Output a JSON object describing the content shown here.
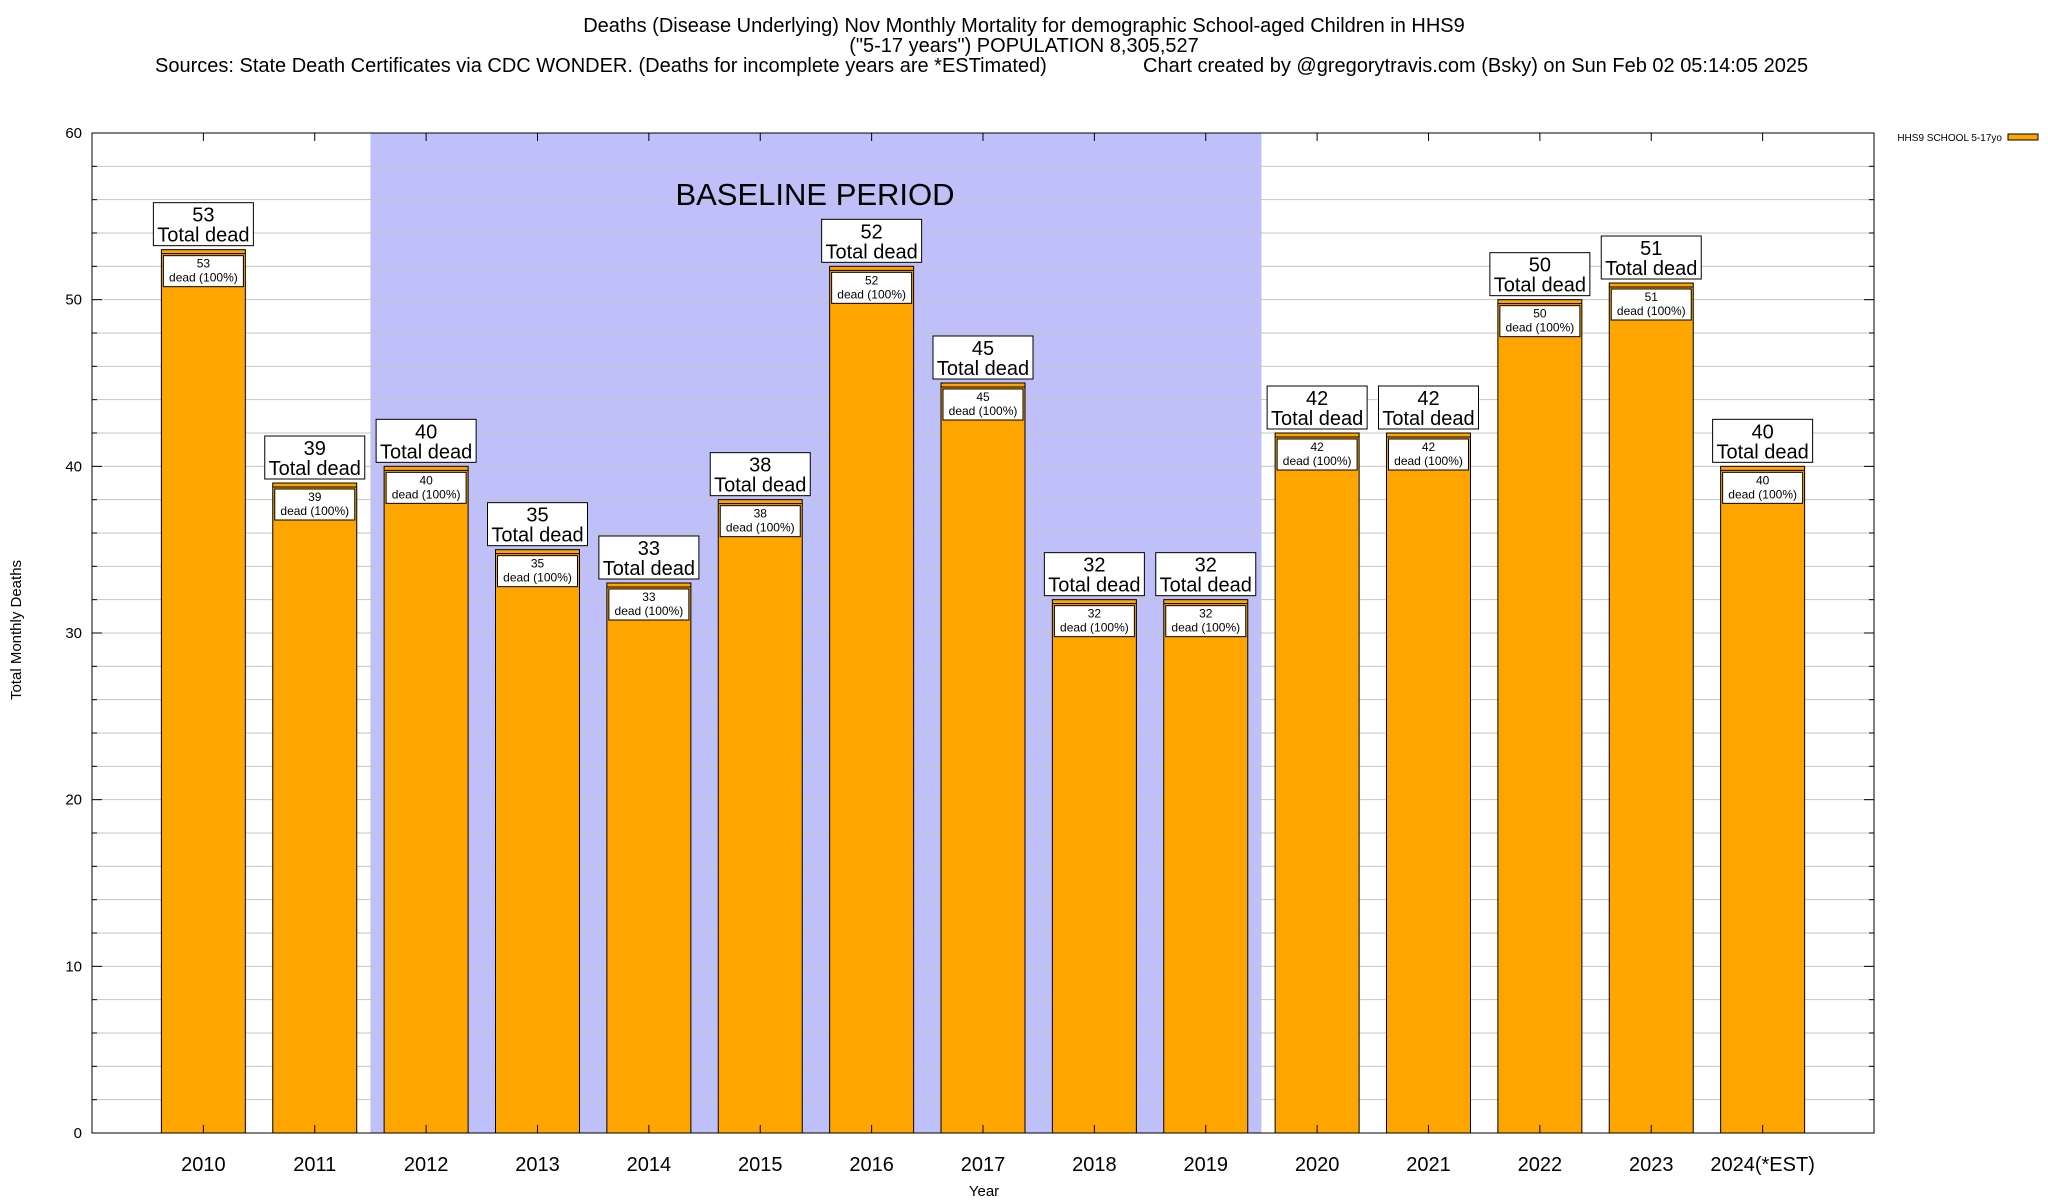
{
  "title": {
    "line1": "Deaths (Disease Underlying) Nov Monthly Mortality for demographic School-aged Children in HHS9",
    "line2": "(\"5-17 years\") POPULATION 8,305,527",
    "line3_left": "Sources: State Death Certificates via CDC WONDER. (Deaths for incomplete years are *ESTimated)",
    "line3_right": "Chart created by @gregorytravis.com (Bsky) on Sun Feb 02 05:14:05 2025"
  },
  "chart_data": {
    "type": "bar",
    "categories": [
      "2010",
      "2011",
      "2012",
      "2013",
      "2014",
      "2015",
      "2016",
      "2017",
      "2018",
      "2019",
      "2020",
      "2021",
      "2022",
      "2023",
      "2024(*EST)"
    ],
    "series": [
      {
        "name": "HHS9 SCHOOL 5-17yo",
        "values": [
          53,
          39,
          40,
          35,
          33,
          38,
          52,
          45,
          32,
          32,
          42,
          42,
          50,
          51,
          40
        ],
        "color": "#ffa500"
      }
    ],
    "bar_label_suffix": "Total dead",
    "inner_label_suffix": "dead (100%)",
    "xlabel": "Year",
    "ylabel": "Total Monthly Deaths",
    "ylim": [
      0,
      60
    ],
    "y_ticks": [
      0,
      10,
      20,
      30,
      40,
      50,
      60
    ],
    "grid": true,
    "legend_position": "top-right",
    "shaded_region": {
      "label": "BASELINE PERIOD",
      "from_category": "2012",
      "to_category": "2019",
      "color": "#bfbffa"
    }
  }
}
